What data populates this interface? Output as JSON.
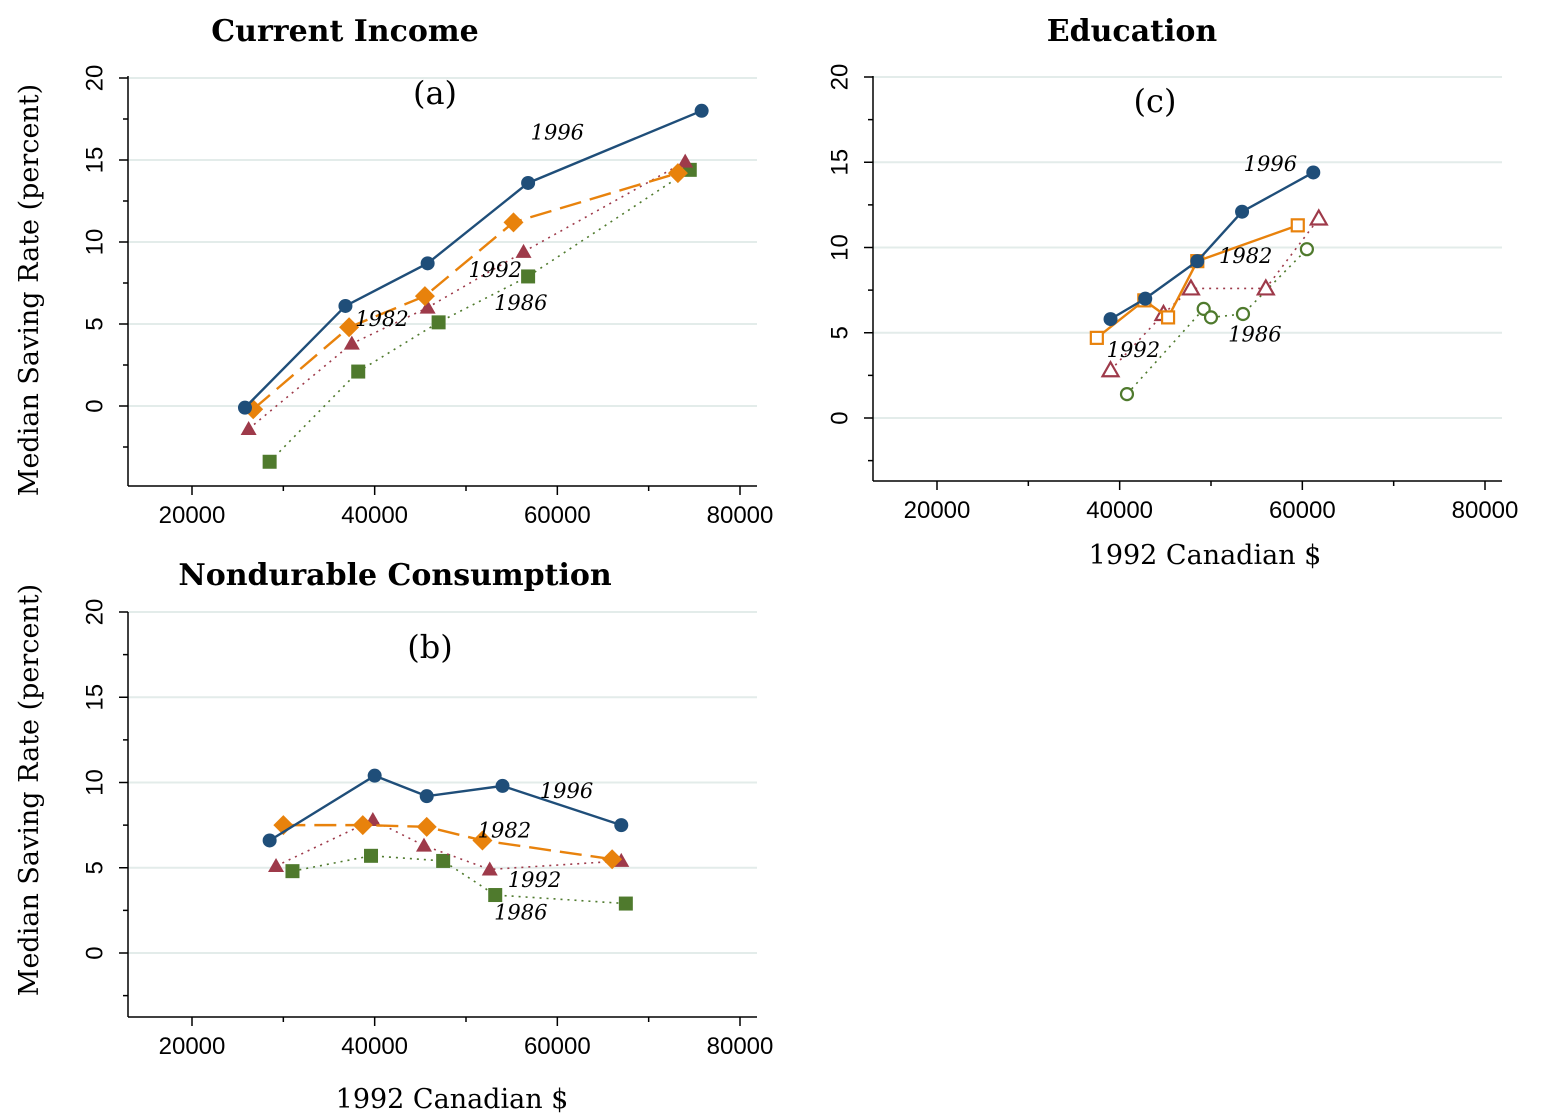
{
  "colors": {
    "1996": "#1f4e79",
    "1982": "#e8820c",
    "1992": "#9e3a4a",
    "1986": "#4f7a2d",
    "grid": "#e3ecea"
  },
  "chart_data": [
    {
      "id": "a",
      "type": "line",
      "title": "Current Income",
      "panel_label": "(a)",
      "xlabel": "",
      "ylabel": "Median Saving Rate (percent)",
      "xlim": [
        14000,
        81000
      ],
      "ylim": [
        -5,
        20.5
      ],
      "xticks": [
        20000,
        40000,
        60000,
        80000
      ],
      "xtick_labels": [
        "20000",
        "40000",
        "60000",
        "80000"
      ],
      "yticks": [
        0,
        5,
        10,
        15,
        20
      ],
      "ytick_labels": [
        "0",
        "5",
        "10",
        "15",
        "20"
      ],
      "grid": true,
      "series": [
        {
          "name": "1986",
          "marker": "square",
          "filled": true,
          "line": "dotted",
          "x": [
            28500,
            38200,
            47000,
            56800,
            74500
          ],
          "y": [
            -3.4,
            2.1,
            5.1,
            7.9,
            14.4
          ]
        },
        {
          "name": "1992",
          "marker": "triangle",
          "filled": true,
          "line": "dotted",
          "x": [
            26200,
            37500,
            45800,
            56300,
            74000
          ],
          "y": [
            -1.4,
            3.8,
            6.0,
            9.4,
            14.9
          ]
        },
        {
          "name": "1982",
          "marker": "diamond",
          "filled": true,
          "line": "dashed",
          "x": [
            26700,
            37200,
            45500,
            55200,
            73200
          ],
          "y": [
            -0.2,
            4.8,
            6.7,
            11.2,
            14.2
          ]
        },
        {
          "name": "1996",
          "marker": "circle",
          "filled": true,
          "line": "solid",
          "x": [
            25800,
            36800,
            45800,
            56800,
            75800
          ],
          "y": [
            -0.1,
            6.1,
            8.7,
            13.6,
            18.0
          ]
        }
      ],
      "annotations": [
        {
          "text": "1996",
          "x": 60000,
          "y": 16.6
        },
        {
          "text": "1982",
          "x": 40800,
          "y": 5.2
        },
        {
          "text": "1992",
          "x": 53200,
          "y": 8.2
        },
        {
          "text": "1986",
          "x": 56000,
          "y": 6.2
        }
      ]
    },
    {
      "id": "b",
      "type": "line",
      "title": "Nondurable Consumption",
      "panel_label": "(b)",
      "xlabel": "1992 Canadian $",
      "ylabel": "Median Saving Rate (percent)",
      "xlim": [
        14000,
        81000
      ],
      "ylim": [
        -3.6,
        20.5
      ],
      "xticks": [
        20000,
        40000,
        60000,
        80000
      ],
      "xtick_labels": [
        "20000",
        "40000",
        "60000",
        "80000"
      ],
      "yticks": [
        0,
        5,
        10,
        15,
        20
      ],
      "ytick_labels": [
        "0",
        "5",
        "10",
        "15",
        "20"
      ],
      "grid": true,
      "series": [
        {
          "name": "1986",
          "marker": "square",
          "filled": true,
          "line": "dotted",
          "x": [
            31000,
            39600,
            47500,
            53200,
            67500
          ],
          "y": [
            4.8,
            5.7,
            5.4,
            3.4,
            2.9
          ]
        },
        {
          "name": "1992",
          "marker": "triangle",
          "filled": true,
          "line": "dotted",
          "x": [
            29200,
            39800,
            45400,
            52600,
            67000
          ],
          "y": [
            5.1,
            7.8,
            6.3,
            4.9,
            5.4
          ]
        },
        {
          "name": "1982",
          "marker": "diamond",
          "filled": true,
          "line": "dashed",
          "x": [
            30000,
            38700,
            45700,
            51800,
            66000
          ],
          "y": [
            7.5,
            7.5,
            7.4,
            6.6,
            5.5
          ]
        },
        {
          "name": "1996",
          "marker": "circle",
          "filled": true,
          "line": "solid",
          "x": [
            28500,
            40000,
            45700,
            54000,
            67000
          ],
          "y": [
            6.6,
            10.4,
            9.2,
            9.8,
            7.5
          ]
        }
      ],
      "annotations": [
        {
          "text": "1996",
          "x": 61000,
          "y": 9.4
        },
        {
          "text": "1982",
          "x": 54200,
          "y": 7.1
        },
        {
          "text": "1992",
          "x": 57500,
          "y": 4.2
        },
        {
          "text": "1986",
          "x": 56000,
          "y": 2.3
        }
      ]
    },
    {
      "id": "c",
      "type": "line",
      "title": "Education",
      "panel_label": "(c)",
      "xlabel": "1992 Canadian $",
      "ylabel": "",
      "xlim": [
        14000,
        81000
      ],
      "ylim": [
        -3.6,
        20.5
      ],
      "xticks": [
        20000,
        40000,
        60000,
        80000
      ],
      "xtick_labels": [
        "20000",
        "40000",
        "60000",
        "80000"
      ],
      "yticks": [
        0,
        5,
        10,
        15,
        20
      ],
      "ytick_labels": [
        "0",
        "5",
        "10",
        "15",
        "20"
      ],
      "grid": true,
      "series": [
        {
          "name": "1986",
          "marker": "circle",
          "filled": false,
          "line": "dotted",
          "x": [
            40800,
            49200,
            50000,
            53500,
            60500
          ],
          "y": [
            1.4,
            6.4,
            5.9,
            6.1,
            9.9
          ]
        },
        {
          "name": "1992",
          "marker": "triangle",
          "filled": false,
          "line": "dotted",
          "x": [
            39000,
            44800,
            47800,
            56000,
            61800
          ],
          "y": [
            2.8,
            6.1,
            7.6,
            7.6,
            11.7
          ]
        },
        {
          "name": "1982",
          "marker": "square",
          "filled": false,
          "line": "solid",
          "x": [
            37500,
            42700,
            45300,
            48500,
            59500
          ],
          "y": [
            4.7,
            6.9,
            5.9,
            9.2,
            11.3
          ]
        },
        {
          "name": "1996",
          "marker": "circle",
          "filled": true,
          "line": "solid",
          "x": [
            39000,
            42800,
            48500,
            53400,
            61200
          ],
          "y": [
            5.8,
            7.0,
            9.2,
            12.1,
            14.4
          ]
        }
      ],
      "annotations": [
        {
          "text": "1996",
          "x": 56500,
          "y": 14.8
        },
        {
          "text": "1982",
          "x": 53800,
          "y": 9.4
        },
        {
          "text": "1992",
          "x": 41500,
          "y": 3.9
        },
        {
          "text": "1986",
          "x": 54800,
          "y": 4.8
        }
      ]
    }
  ]
}
